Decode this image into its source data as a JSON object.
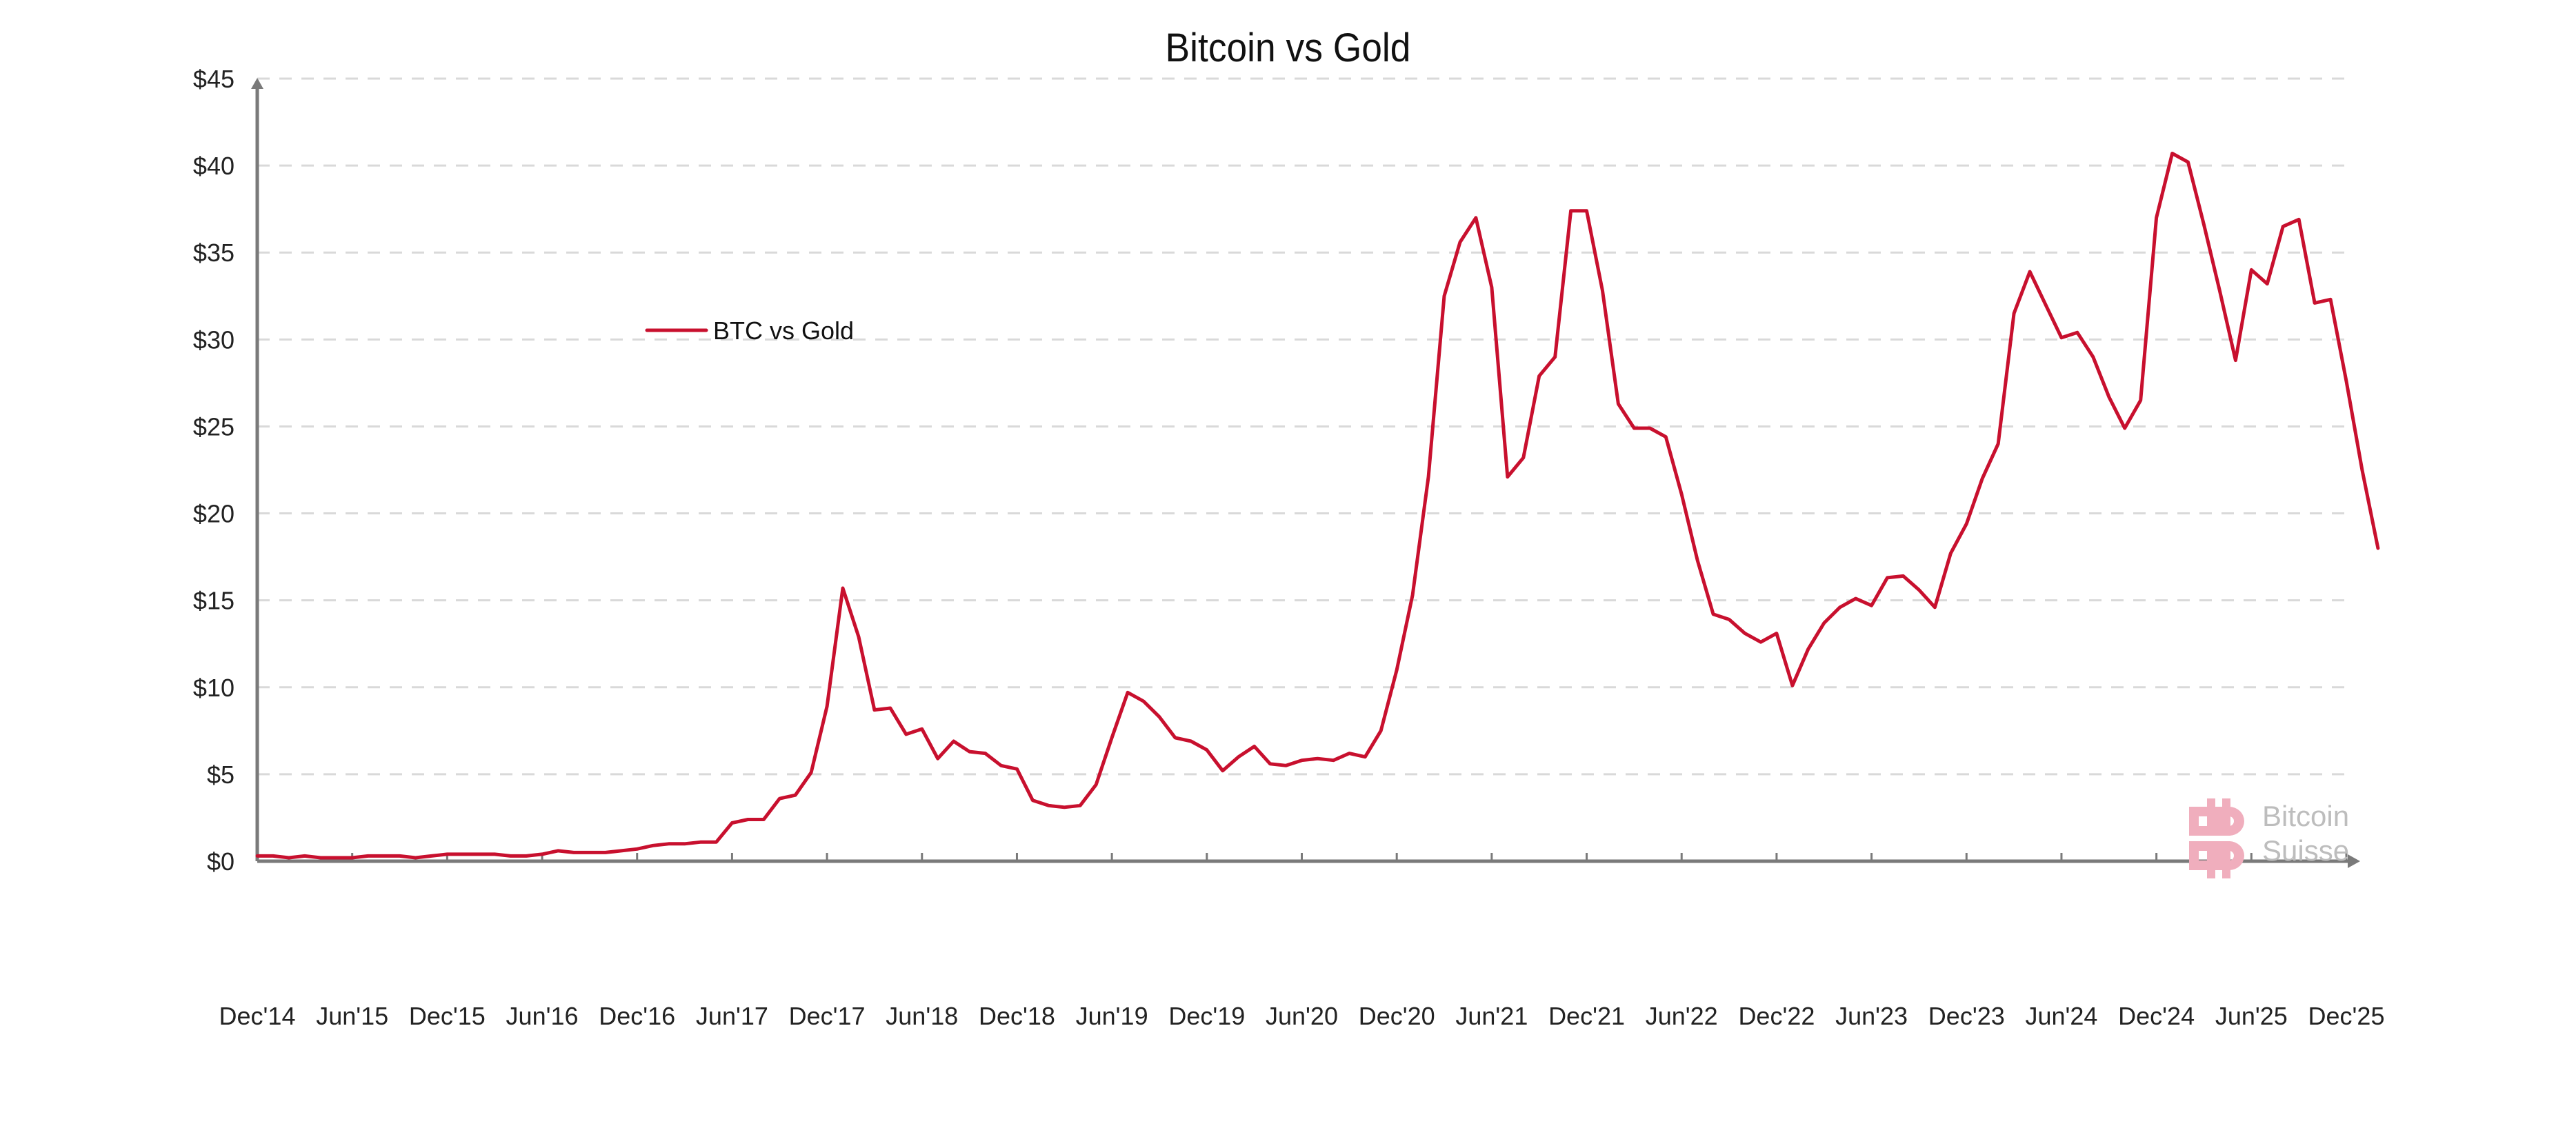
{
  "chart_data": {
    "type": "line",
    "title": "Bitcoin vs Gold",
    "xlabel": "",
    "ylabel": "",
    "ylim": [
      0,
      45
    ],
    "yticks": [
      "$0",
      "$5",
      "$10",
      "$15",
      "$20",
      "$25",
      "$30",
      "$35",
      "$40",
      "$45"
    ],
    "ytick_values": [
      0,
      5,
      10,
      15,
      20,
      25,
      30,
      35,
      40,
      45
    ],
    "xticks": [
      "Dec'14",
      "Jun'15",
      "Dec'15",
      "Jun'16",
      "Dec'16",
      "Jun'17",
      "Dec'17",
      "Jun'18",
      "Dec'18",
      "Jun'19",
      "Dec'19",
      "Jun'20",
      "Dec'20",
      "Jun'21",
      "Dec'21",
      "Jun'22",
      "Dec'22",
      "Jun'23",
      "Dec'23",
      "Jun'24",
      "Dec'24",
      "Jun'25",
      "Dec'25"
    ],
    "grid": true,
    "grid_style": "dashed horizontal",
    "legend_position": "upper-left (inside)",
    "series": [
      {
        "name": "BTC vs Gold",
        "color": "#c8102e",
        "x_start": "Dec'14",
        "frequency": "monthly",
        "values": [
          0.3,
          0.3,
          0.2,
          0.3,
          0.2,
          0.2,
          0.2,
          0.3,
          0.3,
          0.3,
          0.2,
          0.3,
          0.4,
          0.4,
          0.4,
          0.4,
          0.3,
          0.3,
          0.4,
          0.6,
          0.5,
          0.5,
          0.5,
          0.6,
          0.7,
          0.9,
          1.0,
          1.0,
          1.1,
          1.1,
          2.2,
          2.4,
          2.4,
          3.6,
          3.8,
          5.1,
          8.9,
          15.7,
          12.9,
          8.7,
          8.8,
          7.3,
          7.6,
          5.9,
          6.9,
          6.3,
          6.2,
          5.5,
          5.3,
          3.5,
          3.2,
          3.1,
          3.2,
          4.4,
          7.1,
          9.7,
          9.2,
          8.3,
          7.1,
          6.9,
          6.4,
          5.2,
          6.0,
          6.6,
          5.6,
          5.5,
          5.8,
          5.9,
          5.8,
          6.2,
          6.0,
          7.5,
          11.0,
          15.3,
          22.1,
          32.5,
          35.6,
          37.0,
          33.0,
          22.1,
          23.2,
          27.9,
          29.0,
          37.4,
          37.4,
          32.8,
          26.3,
          24.9,
          24.9,
          24.4,
          21.1,
          17.3,
          14.2,
          13.9,
          13.1,
          12.6,
          13.1,
          10.1,
          12.2,
          13.7,
          14.6,
          15.1,
          14.7,
          16.3,
          16.4,
          15.6,
          14.6,
          17.7,
          19.4,
          22.0,
          24.0,
          31.5,
          33.9,
          32.0,
          30.1,
          30.4,
          29.0,
          26.7,
          24.9,
          26.5,
          37.0,
          40.7,
          40.2,
          36.6,
          32.8,
          28.8,
          34.0,
          33.2,
          36.5,
          36.9,
          32.1,
          32.3,
          27.6,
          22.5,
          18.0
        ]
      }
    ]
  },
  "legend": {
    "label": "BTC vs Gold"
  },
  "watermark": {
    "line1": "Bitcoin",
    "line2": "Suisse"
  },
  "colors": {
    "line": "#c8102e",
    "axis": "#7a7a7a",
    "grid": "#d9d9d9",
    "text": "#222222",
    "watermark_logo": "#f0aebd",
    "watermark_text": "#bdbdbd"
  }
}
